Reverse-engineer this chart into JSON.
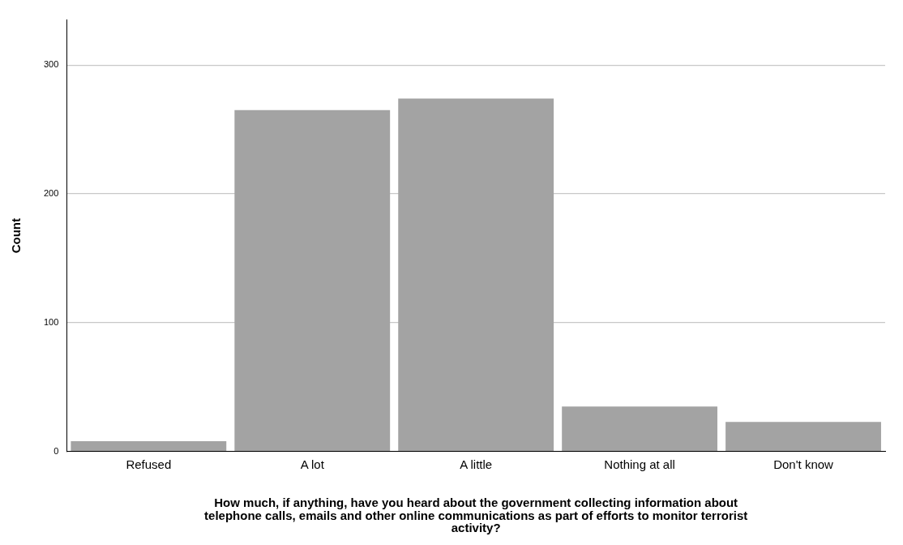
{
  "chart_data": {
    "type": "bar",
    "xlabel": "How much, if anything, have you heard about the government collecting information about telephone calls, emails and other online communications as part of efforts to monitor terrorist activity?",
    "ylabel": "Count",
    "categories": [
      "Refused",
      "A lot",
      "A little",
      "Nothing at all",
      "Don't know"
    ],
    "values": [
      8,
      265,
      274,
      35,
      23
    ],
    "color": "#a3a3a3",
    "ylim": [
      0,
      335
    ],
    "yticks": [
      0,
      100,
      200,
      300
    ],
    "grid": "y",
    "legend": false
  }
}
